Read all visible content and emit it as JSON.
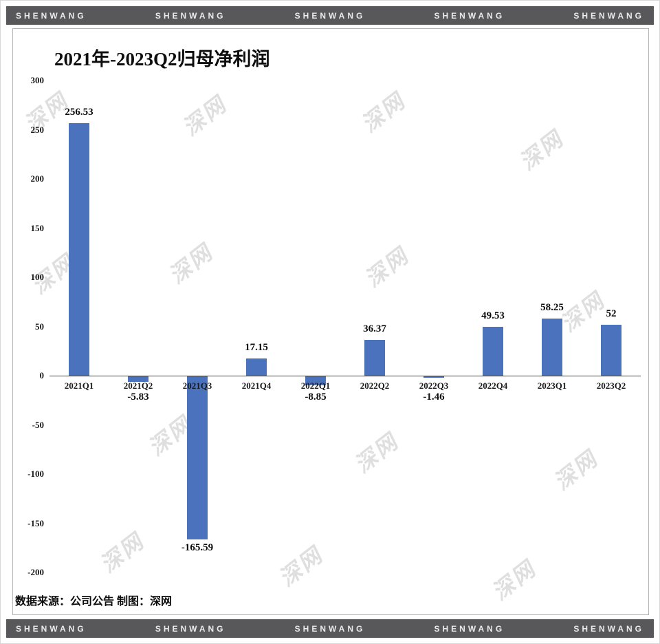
{
  "brand": {
    "banner_text": "SHENWANG"
  },
  "watermark": {
    "text": "深网"
  },
  "footer": {
    "source": "数据来源：公司公告 制图：深网"
  },
  "colors": {
    "bar": "#4a72bd",
    "band_bg": "#58585a",
    "band_text": "#ebebeb",
    "axis_line": "#3f3f3f"
  },
  "chart_data": {
    "type": "bar",
    "title": "2021年-2023Q2归母净利润",
    "categories": [
      "2021Q1",
      "2021Q2",
      "2021Q3",
      "2021Q4",
      "2022Q1",
      "2022Q2",
      "2022Q3",
      "2022Q4",
      "2023Q1",
      "2023Q2"
    ],
    "values": [
      256.53,
      -5.83,
      -165.59,
      17.15,
      -8.85,
      36.37,
      -1.46,
      49.53,
      58.25,
      52
    ],
    "value_labels": [
      "256.53",
      "-5.83",
      "-165.59",
      "17.15",
      "-8.85",
      "36.37",
      "-1.46",
      "49.53",
      "58.25",
      "52"
    ],
    "xlabel": "",
    "ylabel": "",
    "ylim": [
      -200,
      300
    ],
    "yticks": [
      300,
      250,
      200,
      150,
      100,
      50,
      0,
      -50,
      -100,
      -150,
      -200
    ],
    "grid": false,
    "legend": null
  }
}
